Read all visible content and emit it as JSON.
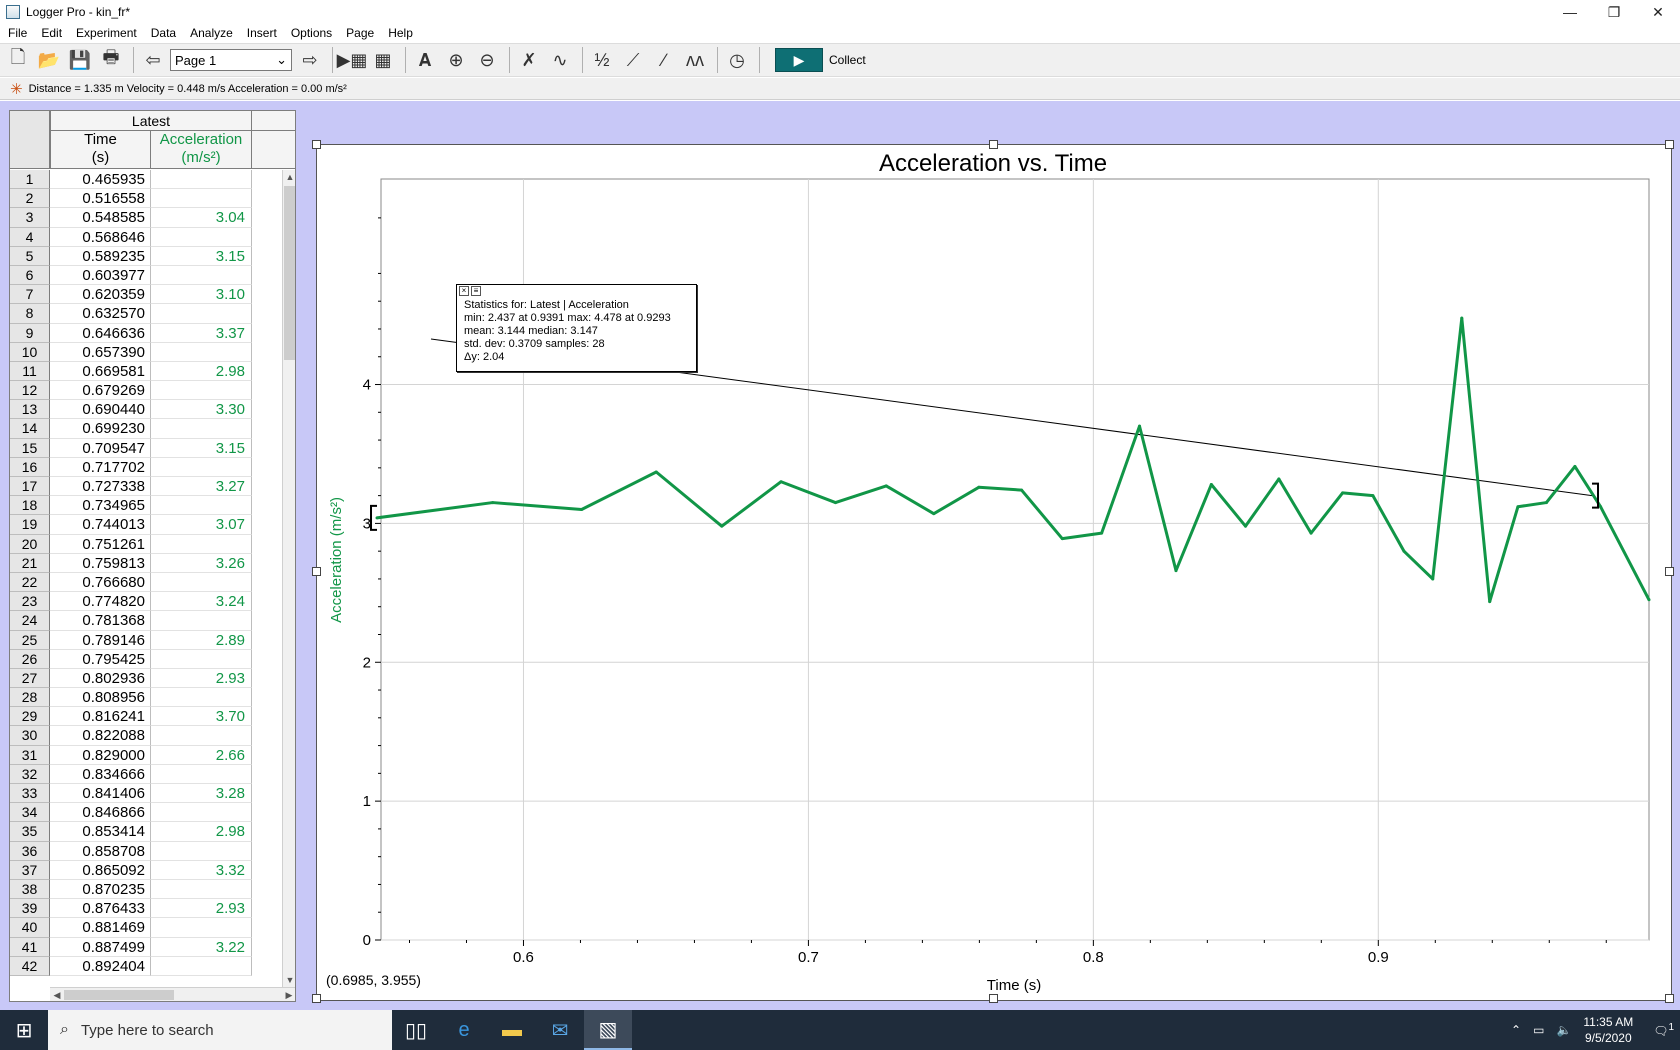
{
  "window": {
    "title": "Logger Pro - kin_fr*",
    "controls": [
      "—",
      "❐",
      "✕"
    ]
  },
  "menu": [
    "File",
    "Edit",
    "Experiment",
    "Data",
    "Analyze",
    "Insert",
    "Options",
    "Page",
    "Help"
  ],
  "toolbar": {
    "page_select": "Page 1",
    "collect_label": "Collect",
    "icons": {
      "new": "new-file-icon",
      "open": "open-folder-icon",
      "save": "save-icon",
      "print": "print-icon",
      "back": "back-arrow-icon",
      "forward": "forward-arrow-icon"
    }
  },
  "meter": {
    "text": "Distance = 1.335 m Velocity = 0.448 m/s Acceleration = 0.00 m/s²"
  },
  "table": {
    "dataset": "Latest",
    "col_time": [
      "Time",
      "(s)"
    ],
    "col_acc": [
      "Acceleration",
      "(m/s²)"
    ],
    "rows": [
      {
        "n": "1",
        "t": "0.465935",
        "a": ""
      },
      {
        "n": "2",
        "t": "0.516558",
        "a": ""
      },
      {
        "n": "3",
        "t": "0.548585",
        "a": "3.04"
      },
      {
        "n": "4",
        "t": "0.568646",
        "a": ""
      },
      {
        "n": "5",
        "t": "0.589235",
        "a": "3.15"
      },
      {
        "n": "6",
        "t": "0.603977",
        "a": ""
      },
      {
        "n": "7",
        "t": "0.620359",
        "a": "3.10"
      },
      {
        "n": "8",
        "t": "0.632570",
        "a": ""
      },
      {
        "n": "9",
        "t": "0.646636",
        "a": "3.37"
      },
      {
        "n": "10",
        "t": "0.657390",
        "a": ""
      },
      {
        "n": "11",
        "t": "0.669581",
        "a": "2.98"
      },
      {
        "n": "12",
        "t": "0.679269",
        "a": ""
      },
      {
        "n": "13",
        "t": "0.690440",
        "a": "3.30"
      },
      {
        "n": "14",
        "t": "0.699230",
        "a": ""
      },
      {
        "n": "15",
        "t": "0.709547",
        "a": "3.15"
      },
      {
        "n": "16",
        "t": "0.717702",
        "a": ""
      },
      {
        "n": "17",
        "t": "0.727338",
        "a": "3.27"
      },
      {
        "n": "18",
        "t": "0.734965",
        "a": ""
      },
      {
        "n": "19",
        "t": "0.744013",
        "a": "3.07"
      },
      {
        "n": "20",
        "t": "0.751261",
        "a": ""
      },
      {
        "n": "21",
        "t": "0.759813",
        "a": "3.26"
      },
      {
        "n": "22",
        "t": "0.766680",
        "a": ""
      },
      {
        "n": "23",
        "t": "0.774820",
        "a": "3.24"
      },
      {
        "n": "24",
        "t": "0.781368",
        "a": ""
      },
      {
        "n": "25",
        "t": "0.789146",
        "a": "2.89"
      },
      {
        "n": "26",
        "t": "0.795425",
        "a": ""
      },
      {
        "n": "27",
        "t": "0.802936",
        "a": "2.93"
      },
      {
        "n": "28",
        "t": "0.808956",
        "a": ""
      },
      {
        "n": "29",
        "t": "0.816241",
        "a": "3.70"
      },
      {
        "n": "30",
        "t": "0.822088",
        "a": ""
      },
      {
        "n": "31",
        "t": "0.829000",
        "a": "2.66"
      },
      {
        "n": "32",
        "t": "0.834666",
        "a": ""
      },
      {
        "n": "33",
        "t": "0.841406",
        "a": "3.28"
      },
      {
        "n": "34",
        "t": "0.846866",
        "a": ""
      },
      {
        "n": "35",
        "t": "0.853414",
        "a": "2.98"
      },
      {
        "n": "36",
        "t": "0.858708",
        "a": ""
      },
      {
        "n": "37",
        "t": "0.865092",
        "a": "3.32"
      },
      {
        "n": "38",
        "t": "0.870235",
        "a": ""
      },
      {
        "n": "39",
        "t": "0.876433",
        "a": "2.93"
      },
      {
        "n": "40",
        "t": "0.881469",
        "a": ""
      },
      {
        "n": "41",
        "t": "0.887499",
        "a": "3.22"
      },
      {
        "n": "42",
        "t": "0.892404",
        "a": ""
      }
    ]
  },
  "stats": {
    "line1": "Statistics for: Latest | Acceleration",
    "line2": "min: 2.437 at 0.9391 max: 4.478 at 0.9293",
    "line3": "mean: 3.144 median: 3.147",
    "line4": "std. dev: 0.3709 samples: 28",
    "line5": "Δy: 2.04"
  },
  "coord_readout": "(0.6985, 3.955)",
  "chart_data": {
    "type": "line",
    "title": "Acceleration vs. Time",
    "xlabel": "Time (s)",
    "ylabel": "Acceleration (m/s²)",
    "xlim": [
      0.55,
      0.995
    ],
    "ylim": [
      0,
      5
    ],
    "x_ticks": [
      "0.6",
      "0.7",
      "0.8",
      "0.9"
    ],
    "y_ticks": [
      "0",
      "1",
      "2",
      "3",
      "4"
    ],
    "grid": true,
    "series": [
      {
        "color": "#119647",
        "x": [
          0.5486,
          0.5892,
          0.6204,
          0.6466,
          0.6696,
          0.6904,
          0.7095,
          0.7273,
          0.744,
          0.7598,
          0.7748,
          0.7891,
          0.8029,
          0.8162,
          0.829,
          0.8414,
          0.8534,
          0.8651,
          0.8764,
          0.8875,
          0.8981,
          0.909,
          0.9191,
          0.9293,
          0.9391,
          0.949,
          0.959,
          0.969,
          0.978,
          0.995
        ],
        "y": [
          3.04,
          3.15,
          3.1,
          3.37,
          2.98,
          3.3,
          3.15,
          3.27,
          3.07,
          3.26,
          3.24,
          2.89,
          2.93,
          3.7,
          2.66,
          3.28,
          2.98,
          3.32,
          2.93,
          3.22,
          3.2,
          2.8,
          2.6,
          4.478,
          2.437,
          3.12,
          3.15,
          3.41,
          3.12,
          2.45
        ]
      }
    ],
    "selection": {
      "x_start": 0.5486,
      "x_end": 0.975,
      "y_start": 3.04,
      "y_end": 3.2
    }
  },
  "taskbar": {
    "search_placeholder": "Type here to search",
    "time": "11:35 AM",
    "date": "9/5/2020",
    "notifications": "1"
  }
}
